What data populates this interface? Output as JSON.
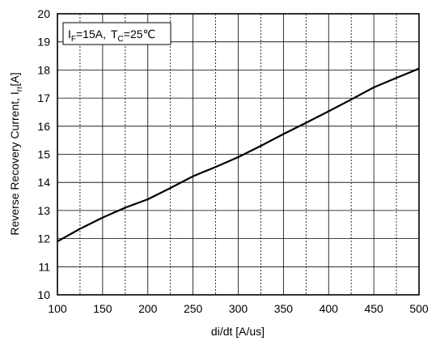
{
  "chart_data": {
    "type": "line",
    "title": "",
    "xlabel": "di/dt [A/us]",
    "ylabel": {
      "prefix": "Reverse Recovery Current, I",
      "sub": "rr",
      "suffix": "[A]"
    },
    "annotation": {
      "i": "I",
      "i_sub": "F",
      "i_value": "=15A,",
      "t": "T",
      "t_sub": "C",
      "t_value": "=25℃"
    },
    "xlim": [
      100,
      500
    ],
    "ylim": [
      10,
      20
    ],
    "x_ticks": [
      100,
      150,
      200,
      250,
      300,
      350,
      400,
      450,
      500
    ],
    "y_ticks": [
      10,
      11,
      12,
      13,
      14,
      15,
      16,
      17,
      18,
      19,
      20
    ],
    "grid": true,
    "grid_x_step": 25,
    "grid_y_step": 1,
    "series": [
      {
        "x": [
          100,
          125,
          150,
          175,
          200,
          225,
          250,
          275,
          300,
          325,
          350,
          375,
          400,
          425,
          450,
          475,
          500
        ],
        "y": [
          11.9,
          12.35,
          12.75,
          13.1,
          13.4,
          13.8,
          14.22,
          14.55,
          14.9,
          15.3,
          15.72,
          16.12,
          16.53,
          16.95,
          17.38,
          17.72,
          18.05
        ]
      }
    ],
    "colors": {
      "line": "#000000",
      "grid": "#000000",
      "frame": "#000000"
    }
  }
}
